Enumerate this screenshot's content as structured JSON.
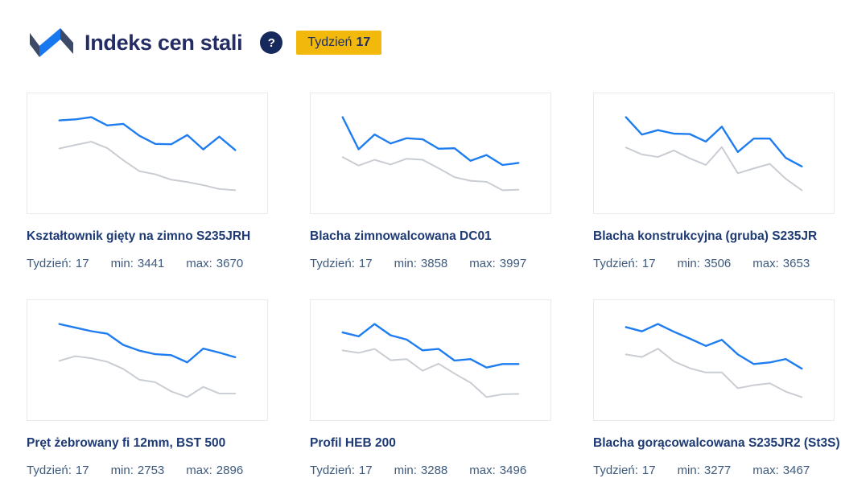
{
  "header": {
    "title": "Indeks cen stali",
    "help": "?",
    "week_badge": {
      "label": "Tydzień",
      "value": "17"
    }
  },
  "labels": {
    "week": "Tydzień:",
    "min": "min:",
    "max": "max:"
  },
  "colors": {
    "navy": "#232d64",
    "card_title": "#1e3a74",
    "stats_text": "#3d5a7e",
    "line_blue": "#1d7df0",
    "line_gray": "#c9cdd3",
    "badge_bg": "#f2b80c",
    "badge_text": "#1e2f5e",
    "help_bg": "#16295c",
    "logo_navy": "#3c4a68",
    "logo_blue": "#1878f0",
    "card_border": "#e9eaec"
  },
  "chart_data": [
    {
      "type": "line",
      "title": "Kształtownik gięty na zimno S235JRH",
      "week": "17",
      "min": "3441",
      "max": "3670",
      "legend": "none",
      "axes": "hidden",
      "series": [
        {
          "name": "blue",
          "values": [
            3660,
            3663,
            3670,
            3644,
            3649,
            3612,
            3586,
            3585,
            3614,
            3569,
            3609,
            3567
          ]
        },
        {
          "name": "gray",
          "values": [
            3572,
            3583,
            3593,
            3573,
            3535,
            3501,
            3491,
            3474,
            3467,
            3457,
            3445,
            3441
          ]
        }
      ]
    },
    {
      "type": "line",
      "title": "Blacha zimnowalcowana DC01",
      "week": "17",
      "min": "3858",
      "max": "3997",
      "legend": "none",
      "axes": "hidden",
      "series": [
        {
          "name": "blue",
          "values": [
            3997,
            3936,
            3964,
            3947,
            3957,
            3955,
            3937,
            3938,
            3914,
            3925,
            3906,
            3910
          ]
        },
        {
          "name": "gray",
          "values": [
            3921,
            3905,
            3916,
            3907,
            3918,
            3916,
            3900,
            3883,
            3876,
            3874,
            3858,
            3859
          ]
        }
      ]
    },
    {
      "type": "line",
      "title": "Blacha konstrukcyjna (gruba) S235JR",
      "week": "17",
      "min": "3506",
      "max": "3653",
      "legend": "none",
      "axes": "hidden",
      "series": [
        {
          "name": "blue",
          "values": [
            3653,
            3618,
            3627,
            3620,
            3619,
            3604,
            3634,
            3583,
            3610,
            3610,
            3571,
            3554
          ]
        },
        {
          "name": "gray",
          "values": [
            3592,
            3578,
            3573,
            3586,
            3570,
            3557,
            3593,
            3540,
            3550,
            3559,
            3529,
            3506
          ]
        }
      ]
    },
    {
      "type": "line",
      "title": "Pręt żebrowany fi 12mm, BST 500",
      "week": "17",
      "min": "2753",
      "max": "2896",
      "legend": "none",
      "axes": "hidden",
      "series": [
        {
          "name": "blue",
          "values": [
            2896,
            2889,
            2882,
            2877,
            2855,
            2844,
            2837,
            2835,
            2821,
            2848,
            2840,
            2831
          ]
        },
        {
          "name": "gray",
          "values": [
            2824,
            2833,
            2829,
            2822,
            2808,
            2787,
            2782,
            2764,
            2753,
            2773,
            2760,
            2760
          ]
        }
      ]
    },
    {
      "type": "line",
      "title": "Profil HEB 200",
      "week": "17",
      "min": "3288",
      "max": "3496",
      "legend": "none",
      "axes": "hidden",
      "series": [
        {
          "name": "blue",
          "values": [
            3472,
            3461,
            3496,
            3464,
            3452,
            3421,
            3425,
            3392,
            3396,
            3372,
            3382,
            3382
          ]
        },
        {
          "name": "gray",
          "values": [
            3421,
            3414,
            3425,
            3393,
            3396,
            3363,
            3383,
            3355,
            3329,
            3288,
            3296,
            3297
          ]
        }
      ]
    },
    {
      "type": "line",
      "title": "Blacha gorącowalcowana S235JR2 (St3S)",
      "week": "17",
      "min": "3277",
      "max": "3467",
      "legend": "none",
      "axes": "hidden",
      "series": [
        {
          "name": "blue",
          "values": [
            3459,
            3448,
            3467,
            3447,
            3429,
            3410,
            3426,
            3388,
            3363,
            3367,
            3376,
            3351
          ]
        },
        {
          "name": "gray",
          "values": [
            3388,
            3381,
            3403,
            3370,
            3352,
            3341,
            3341,
            3300,
            3308,
            3313,
            3291,
            3277
          ]
        }
      ]
    }
  ]
}
